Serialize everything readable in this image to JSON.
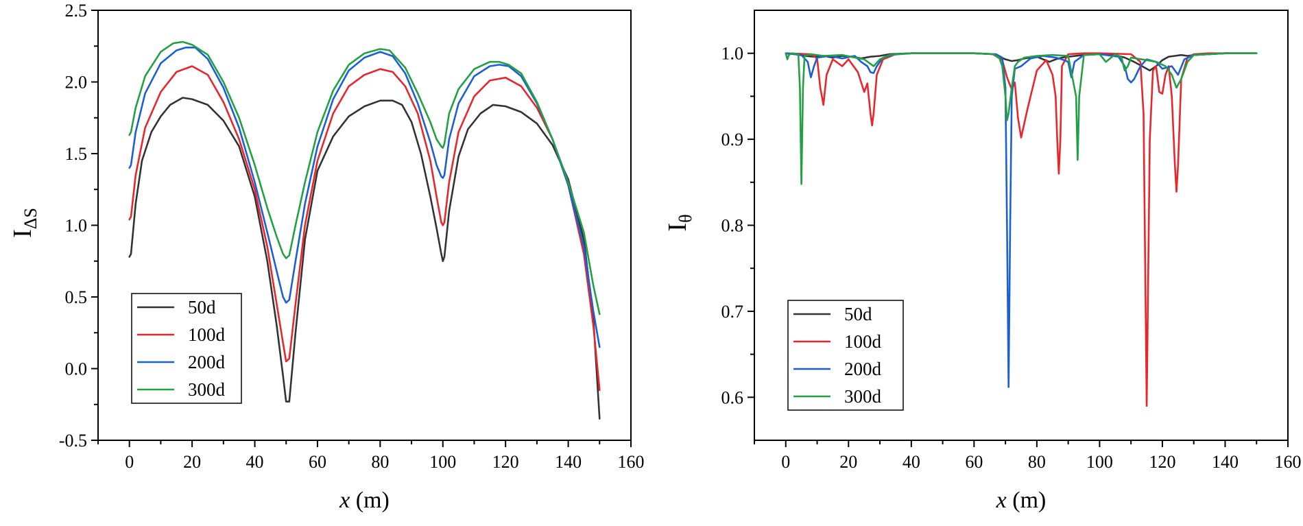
{
  "chart_data": [
    {
      "type": "line",
      "ylabel": "I",
      "ylabel_sub": "ΔS",
      "xlabel_var": "x",
      "xlabel_unit": " (m)",
      "xlim": [
        -10,
        160
      ],
      "ylim": [
        -0.5,
        2.5
      ],
      "xticks": [
        0,
        20,
        40,
        60,
        80,
        100,
        120,
        140,
        160
      ],
      "xtick_labels": [
        "0",
        "20",
        "40",
        "60",
        "80",
        "100",
        "120",
        "140",
        "160"
      ],
      "yticks": [
        -0.5,
        0.0,
        0.5,
        1.0,
        1.5,
        2.0,
        2.5
      ],
      "ytick_labels": [
        "-0.5",
        "0.0",
        "0.5",
        "1.0",
        "1.5",
        "2.0",
        "2.5"
      ],
      "legend_position": "lower-left",
      "series": [
        {
          "name": "50d",
          "color": "#333333",
          "x": [
            0,
            0.5,
            2,
            4,
            7,
            10,
            13,
            17,
            20,
            25,
            30,
            35,
            40,
            44,
            47,
            49,
            50,
            51,
            53,
            56,
            60,
            65,
            70,
            75,
            80,
            84,
            87,
            90,
            93,
            96,
            98,
            99.5,
            100,
            100.5,
            102,
            105,
            108,
            112,
            116,
            120,
            125,
            130,
            135,
            140,
            145,
            148,
            150
          ],
          "y": [
            0.78,
            0.8,
            1.15,
            1.45,
            1.65,
            1.76,
            1.84,
            1.89,
            1.88,
            1.84,
            1.73,
            1.55,
            1.2,
            0.75,
            0.3,
            -0.05,
            -0.23,
            -0.23,
            0.25,
            0.9,
            1.38,
            1.62,
            1.76,
            1.83,
            1.87,
            1.87,
            1.84,
            1.72,
            1.5,
            1.2,
            0.98,
            0.8,
            0.75,
            0.78,
            1.1,
            1.48,
            1.67,
            1.78,
            1.84,
            1.83,
            1.79,
            1.71,
            1.56,
            1.32,
            0.9,
            0.35,
            -0.35
          ]
        },
        {
          "name": "100d",
          "color": "#e8262b",
          "x": [
            0,
            0.5,
            2,
            5,
            10,
            15,
            20,
            25,
            30,
            35,
            40,
            44,
            47,
            49,
            50,
            51,
            53,
            56,
            60,
            65,
            70,
            75,
            80,
            84,
            88,
            92,
            96,
            98,
            99.5,
            100,
            100.5,
            102,
            105,
            110,
            115,
            120,
            125,
            130,
            135,
            140,
            145,
            148,
            150
          ],
          "y": [
            1.04,
            1.06,
            1.35,
            1.68,
            1.93,
            2.07,
            2.11,
            2.05,
            1.86,
            1.6,
            1.25,
            0.85,
            0.45,
            0.18,
            0.05,
            0.07,
            0.45,
            1.0,
            1.45,
            1.78,
            1.97,
            2.05,
            2.09,
            2.07,
            1.97,
            1.78,
            1.45,
            1.2,
            1.02,
            1.0,
            1.02,
            1.3,
            1.65,
            1.9,
            2.01,
            2.03,
            1.97,
            1.82,
            1.6,
            1.28,
            0.8,
            0.3,
            -0.15
          ]
        },
        {
          "name": "200d",
          "color": "#1b5fd8",
          "x": [
            0,
            0.5,
            2,
            5,
            10,
            15,
            18,
            21,
            25,
            30,
            35,
            40,
            44,
            47,
            49,
            50,
            51,
            53,
            56,
            60,
            65,
            70,
            75,
            80,
            84,
            88,
            92,
            96,
            98,
            99.5,
            100,
            100.5,
            102,
            105,
            110,
            115,
            118,
            121,
            125,
            130,
            135,
            140,
            145,
            148,
            150
          ],
          "y": [
            1.4,
            1.42,
            1.65,
            1.92,
            2.13,
            2.22,
            2.24,
            2.24,
            2.16,
            1.96,
            1.68,
            1.3,
            0.95,
            0.68,
            0.5,
            0.46,
            0.48,
            0.75,
            1.15,
            1.55,
            1.88,
            2.08,
            2.17,
            2.21,
            2.18,
            2.06,
            1.85,
            1.58,
            1.42,
            1.34,
            1.33,
            1.35,
            1.6,
            1.85,
            2.04,
            2.11,
            2.12,
            2.11,
            2.04,
            1.85,
            1.6,
            1.28,
            0.85,
            0.4,
            0.15
          ]
        },
        {
          "name": "300d",
          "color": "#21a044",
          "x": [
            0,
            0.5,
            2,
            5,
            10,
            14,
            17,
            20,
            25,
            30,
            35,
            40,
            44,
            47,
            49,
            50,
            51,
            53,
            56,
            60,
            65,
            70,
            75,
            80,
            83,
            88,
            92,
            96,
            98,
            99.5,
            100,
            100.5,
            102,
            105,
            110,
            115,
            118,
            121,
            125,
            130,
            135,
            140,
            145,
            148,
            150
          ],
          "y": [
            1.63,
            1.65,
            1.82,
            2.04,
            2.21,
            2.27,
            2.28,
            2.26,
            2.19,
            2.0,
            1.75,
            1.42,
            1.12,
            0.92,
            0.8,
            0.77,
            0.79,
            1.0,
            1.3,
            1.65,
            1.94,
            2.12,
            2.2,
            2.23,
            2.22,
            2.1,
            1.92,
            1.72,
            1.6,
            1.55,
            1.54,
            1.57,
            1.78,
            1.95,
            2.09,
            2.14,
            2.14,
            2.12,
            2.06,
            1.86,
            1.6,
            1.3,
            0.95,
            0.58,
            0.38
          ]
        }
      ]
    },
    {
      "type": "line",
      "ylabel": "I",
      "ylabel_sub": "θ",
      "xlabel_var": "x",
      "xlabel_unit": " (m)",
      "xlim": [
        -10,
        160
      ],
      "ylim": [
        0.55,
        1.05
      ],
      "xticks": [
        0,
        20,
        40,
        60,
        80,
        100,
        120,
        140,
        160
      ],
      "xtick_labels": [
        "0",
        "20",
        "40",
        "60",
        "80",
        "100",
        "120",
        "140",
        "160"
      ],
      "yticks": [
        0.6,
        0.7,
        0.8,
        0.9,
        1.0
      ],
      "ytick_labels": [
        "0.6",
        "0.7",
        "0.8",
        "0.9",
        "1.0"
      ],
      "legend_position": "lower-left",
      "series": [
        {
          "name": "50d",
          "color": "#333333",
          "x": [
            0,
            3,
            6,
            9,
            12,
            15,
            18,
            21,
            24,
            27,
            30,
            33,
            40,
            60,
            66,
            68,
            70,
            72,
            74,
            76,
            78,
            80,
            82,
            84,
            86,
            88,
            90,
            95,
            100,
            105,
            108,
            111,
            114,
            116,
            118,
            120,
            122,
            124,
            126,
            128,
            130,
            135,
            140,
            150
          ],
          "y": [
            1.0,
            0.999,
            0.997,
            0.996,
            0.997,
            0.995,
            0.997,
            0.996,
            0.994,
            0.996,
            0.997,
            0.999,
            1.0,
            1.0,
            0.999,
            0.996,
            0.993,
            0.991,
            0.992,
            0.994,
            0.995,
            0.996,
            0.993,
            0.99,
            0.993,
            0.995,
            0.996,
            0.998,
            0.999,
            0.998,
            0.995,
            0.99,
            0.984,
            0.98,
            0.985,
            0.992,
            0.996,
            0.997,
            0.998,
            0.997,
            0.998,
            0.999,
            1.0,
            1.0
          ]
        },
        {
          "name": "100d",
          "color": "#e8262b",
          "x": [
            0,
            8,
            10,
            11,
            12,
            13,
            15,
            18,
            20,
            23,
            25,
            26,
            27,
            27.5,
            28,
            29,
            31,
            35,
            40,
            60,
            66,
            69,
            70.5,
            72,
            73,
            74,
            75,
            77,
            80,
            83,
            85,
            86,
            86.5,
            87,
            87.5,
            88,
            90,
            95,
            100,
            110,
            113,
            114,
            115,
            116,
            117,
            118,
            119,
            120,
            121,
            122,
            123,
            124,
            124.5,
            125,
            126,
            128,
            130,
            135,
            140,
            150
          ],
          "y": [
            1.0,
            0.999,
            0.994,
            0.96,
            0.94,
            0.975,
            0.993,
            0.985,
            0.993,
            0.978,
            0.955,
            0.965,
            0.93,
            0.916,
            0.93,
            0.975,
            0.993,
            0.999,
            1.0,
            1.0,
            0.999,
            0.992,
            0.972,
            0.958,
            0.966,
            0.925,
            0.902,
            0.935,
            0.98,
            0.992,
            0.975,
            0.95,
            0.9,
            0.86,
            0.9,
            0.985,
            0.999,
            1.0,
            1.0,
            0.999,
            0.99,
            0.93,
            0.59,
            0.9,
            0.98,
            0.985,
            0.955,
            0.953,
            0.975,
            0.985,
            0.95,
            0.87,
            0.839,
            0.87,
            0.97,
            0.995,
            0.999,
            1.0,
            1.0,
            1.0
          ]
        },
        {
          "name": "200d",
          "color": "#1b5fd8",
          "x": [
            0,
            5,
            7,
            8,
            9,
            10,
            14,
            18,
            22,
            24,
            26,
            27,
            28,
            29,
            31,
            35,
            40,
            60,
            67,
            69,
            70,
            70.5,
            71,
            71.5,
            72,
            73,
            75,
            78,
            82,
            86,
            88,
            90,
            91,
            92,
            95,
            100,
            106,
            108,
            109,
            110,
            111,
            113,
            115,
            118,
            120,
            123,
            125,
            127,
            130,
            135,
            140,
            150
          ],
          "y": [
            1.0,
            0.998,
            0.99,
            0.972,
            0.985,
            0.995,
            0.997,
            0.994,
            0.997,
            0.99,
            0.985,
            0.978,
            0.977,
            0.985,
            0.995,
            0.999,
            1.0,
            1.0,
            0.999,
            0.995,
            0.96,
            0.8,
            0.612,
            0.8,
            0.95,
            0.982,
            0.985,
            0.994,
            0.997,
            0.995,
            0.993,
            0.99,
            0.972,
            0.99,
            0.998,
            0.999,
            0.996,
            0.985,
            0.97,
            0.966,
            0.97,
            0.985,
            0.993,
            0.99,
            0.982,
            0.985,
            0.975,
            0.993,
            0.998,
            0.999,
            1.0,
            1.0
          ]
        },
        {
          "name": "300d",
          "color": "#21a044",
          "x": [
            0,
            0.5,
            1,
            2,
            4,
            4.5,
            5,
            5.5,
            6,
            8,
            12,
            18,
            22,
            25,
            28,
            30,
            33,
            40,
            60,
            66,
            68,
            69,
            70,
            70.5,
            71,
            72,
            73,
            74,
            76,
            80,
            85,
            90,
            92.5,
            93,
            93.5,
            95,
            100,
            102,
            105,
            107,
            108,
            109,
            110,
            115,
            118,
            121,
            123,
            124.5,
            126,
            128,
            130,
            135,
            140,
            150
          ],
          "y": [
            1.0,
            0.993,
            0.998,
            1.0,
            0.999,
            0.96,
            0.848,
            0.96,
            0.997,
            0.999,
            0.997,
            0.998,
            0.995,
            0.993,
            0.985,
            0.993,
            0.998,
            1.0,
            1.0,
            0.999,
            0.995,
            0.985,
            0.95,
            0.922,
            0.93,
            0.96,
            0.985,
            0.99,
            0.995,
            0.997,
            0.998,
            0.997,
            0.95,
            0.876,
            0.95,
            0.998,
            0.999,
            0.99,
            0.999,
            0.995,
            0.98,
            0.985,
            0.995,
            0.992,
            0.99,
            0.985,
            0.975,
            0.96,
            0.97,
            0.99,
            0.998,
            0.999,
            1.0,
            1.0
          ]
        }
      ]
    }
  ]
}
